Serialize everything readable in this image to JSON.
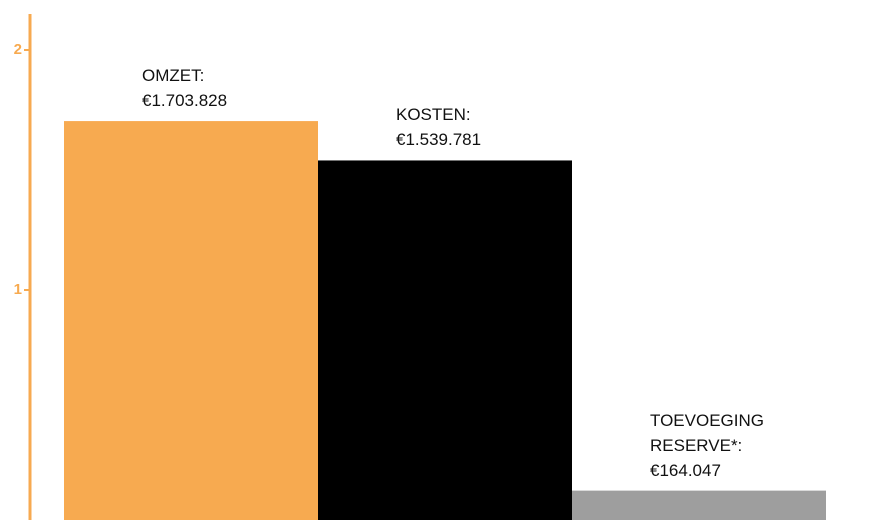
{
  "chart_data": {
    "type": "bar",
    "categories": [
      "OMZET:",
      "KOSTEN:",
      "TOEVOEGING RESERVE*:"
    ],
    "values": [
      1.703828,
      1.539781,
      0.164047
    ],
    "value_labels": [
      "€1.703.828",
      "€1.539.781",
      "€164.047"
    ],
    "colors": [
      "#f7aa50",
      "#000000",
      "#9e9e9e"
    ],
    "axis_color": "#f7aa50",
    "ylim": [
      0,
      2.15
    ],
    "yticks": [
      1,
      2
    ],
    "grid": false
  }
}
